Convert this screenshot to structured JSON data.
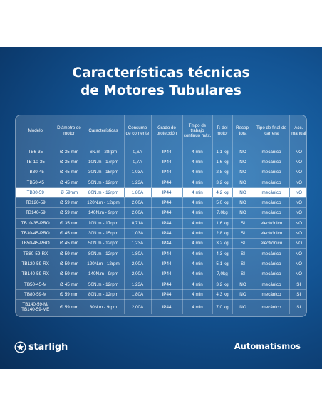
{
  "title_line1": "Características técnicas",
  "title_line2": "de Motores Tubulares",
  "table": {
    "headers": [
      "Modelo",
      "Diámetro de motor",
      "Características",
      "Consumo de corriente",
      "Grado de protección",
      "Tmpo de trabajo continuo máx.",
      "P. del motor",
      "Recep-tora",
      "Tipo de final de carrera",
      "Acc. manual"
    ],
    "rows": [
      [
        "TB6-35",
        "Ø 35 mm",
        "6N.m - 28rpm",
        "0,6A",
        "IP44",
        "4 min",
        "1,1 kg",
        "NO",
        "mecánico",
        "NO"
      ],
      [
        "TB-10-35",
        "Ø 35 mm",
        "10N.m - 17rpm",
        "0,7A",
        "IP44",
        "4 min",
        "1,6 kg",
        "NO",
        "mecánico",
        "NO"
      ],
      [
        "TB30-45",
        "Ø 45 mm",
        "30N.m - 15rpm",
        "1,03A",
        "IP44",
        "4 min",
        "2,8 kg",
        "NO",
        "mecánico",
        "NO"
      ],
      [
        "TB50-45",
        "Ø 45 mm",
        "50N.m - 12rpm",
        "1,23A",
        "IP44",
        "4 min",
        "3,2 kg",
        "NO",
        "mecánico",
        "NO"
      ],
      [
        "TB80-59",
        "Ø 59mm",
        "80N.m - 12rpm",
        "1,80A",
        "IP44",
        "4 min",
        "4,2 kg",
        "NO",
        "mecánico",
        "NO"
      ],
      [
        "TB120-59",
        "Ø 59 mm",
        "120N.m - 12rpm",
        "2,00A",
        "IP44",
        "4 min",
        "5,0 kg",
        "NO",
        "mecánico",
        "NO"
      ],
      [
        "TB140-59",
        "Ø 59 mm",
        "140N.m - 9rpm",
        "2,00A",
        "IP44",
        "4 min",
        "7,0kg",
        "NO",
        "mecánico",
        "NO"
      ],
      [
        "TB10-35-PRO",
        "Ø 35 mm",
        "10N.m - 17rpm",
        "0,71A",
        "IP44",
        "4 min",
        "1,6 kg",
        "SI",
        "electrónico",
        "NO"
      ],
      [
        "TB30-45-PRO",
        "Ø 45 mm",
        "30N.m - 15rpm",
        "1,03A",
        "IP44",
        "4 min",
        "2,8 kg",
        "SI",
        "electrónico",
        "NO"
      ],
      [
        "TB50-45-PRO",
        "Ø 45 mm",
        "50N.m - 12rpm",
        "1,23A",
        "IP44",
        "4 min",
        "3,2 kg",
        "SI",
        "electrónico",
        "NO"
      ],
      [
        "TB80-59-RX",
        "Ø 59 mm",
        "80N.m - 12rpm",
        "1,80A",
        "IP44",
        "4 min",
        "4,3 kg",
        "SI",
        "mecánico",
        "NO"
      ],
      [
        "TB120-59-RX",
        "Ø 59 mm",
        "120N.m - 12rpm",
        "2,00A",
        "IP44",
        "4 min",
        "5,1 kg",
        "SI",
        "mecánico",
        "NO"
      ],
      [
        "TB140-59-RX",
        "Ø 59 mm",
        "140N.m - 9rpm",
        "2,00A",
        "IP44",
        "4 min",
        "7,0kg",
        "SI",
        "mecánico",
        "NO"
      ],
      [
        "TB50-45-M",
        "Ø 45 mm",
        "50N.m - 12rpm",
        "1,23A",
        "IP44",
        "4 min",
        "3,2 kg",
        "NO",
        "mecánico",
        "SI"
      ],
      [
        "TB80-59-M",
        "Ø 59 mm",
        "80N.m - 12rpm",
        "1,80A",
        "IP44",
        "4 min",
        "4,3 kg",
        "NO",
        "mecánico",
        "SI"
      ],
      [
        "TB140-59-M/ TB140-59-ME",
        "Ø 59 mm",
        "80N.m - 9rpm",
        "2,00A",
        "IP44",
        "4 min",
        "7,0 kg",
        "NO",
        "mecánico",
        "SI"
      ]
    ],
    "highlight_row_index": 4
  },
  "footer": {
    "brand": "starligh",
    "logo_icon": "star-circle-icon",
    "tagline": "Automatismos"
  },
  "colors": {
    "background": "#135494",
    "highlight_text": "#1d5794"
  }
}
